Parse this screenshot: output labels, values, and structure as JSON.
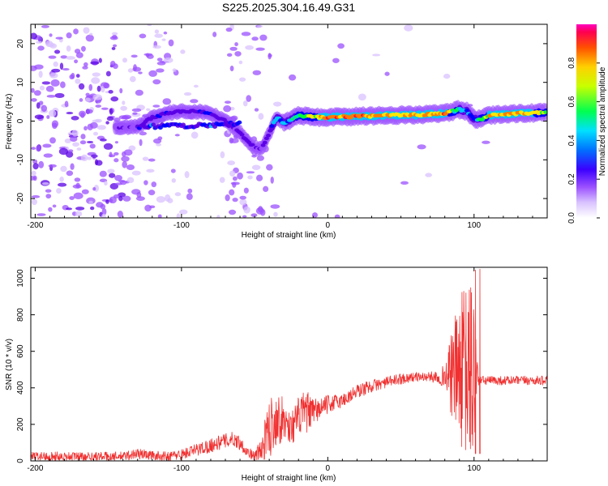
{
  "colors": {
    "spectrogram": [
      "#d9c2ff",
      "#9b50ff",
      "#5a00e6",
      "#0000ff",
      "#00c8ff",
      "#00ff3a",
      "#ffe800",
      "#ff7a00",
      "#ff1030"
    ],
    "snr_line": "#f03030",
    "axis": "#000000"
  },
  "chart_data": [
    {
      "type": "heatmap",
      "title": "S225.2025.304.16.49.G31",
      "xlabel": "Height of straight line (km)",
      "ylabel": "Frequency (Hz)",
      "xlim": [
        -203,
        150
      ],
      "ylim": [
        -25,
        25
      ],
      "xticks": [
        -200,
        -100,
        0,
        100
      ],
      "yticks": [
        -20,
        -10,
        0,
        10,
        20
      ],
      "colorbar": {
        "label": "Normalized spectral amplitude",
        "range": [
          0,
          1
        ],
        "ticks": [
          "0.0",
          "0.2",
          "0.4",
          "0.6",
          "0.8"
        ],
        "tick_values": [
          0,
          0.2,
          0.4,
          0.6,
          0.8
        ]
      },
      "ridge_x": [
        -140,
        -130,
        -120,
        -110,
        -100,
        -90,
        -80,
        -70,
        -60,
        -55,
        -50,
        -45,
        -40,
        -35,
        -30,
        -20,
        -10,
        0,
        20,
        40,
        60,
        80,
        85,
        90,
        95,
        100,
        105,
        110,
        130,
        150
      ],
      "ridge_y": [
        -1.5,
        -1.5,
        1,
        2,
        2.5,
        2.5,
        2,
        0,
        -3,
        -5,
        -7,
        -7,
        -3,
        1,
        -0.5,
        1.5,
        1,
        1,
        1.2,
        1.5,
        1.6,
        2,
        2.5,
        3,
        2.5,
        0.5,
        0.5,
        1.5,
        2,
        2.2
      ],
      "ridge_amp": [
        0.2,
        0.15,
        0.3,
        0.3,
        0.25,
        0.3,
        0.3,
        0.2,
        0.2,
        0.25,
        0.2,
        0.2,
        0.3,
        0.5,
        0.45,
        0.6,
        0.75,
        0.9,
        0.92,
        0.8,
        0.8,
        0.9,
        0.65,
        0.55,
        0.45,
        0.35,
        0.65,
        0.8,
        0.85,
        0.75
      ]
    },
    {
      "type": "line",
      "xlabel": "Height of straight line (km)",
      "ylabel": "SNR (10 * v/v)",
      "xlim": [
        -203,
        150
      ],
      "ylim": [
        0,
        1060
      ],
      "xticks": [
        -200,
        -100,
        0,
        100
      ],
      "yticks": [
        0,
        200,
        400,
        600,
        800,
        1000
      ],
      "series": [
        {
          "name": "SNR",
          "x": [
            -203,
            -190,
            -180,
            -170,
            -160,
            -150,
            -140,
            -130,
            -120,
            -110,
            -100,
            -90,
            -80,
            -70,
            -65,
            -60,
            -55,
            -50,
            -45,
            -40,
            -35,
            -30,
            -25,
            -20,
            -15,
            -10,
            -5,
            0,
            10,
            20,
            30,
            40,
            50,
            60,
            70,
            80,
            85,
            90,
            95,
            100,
            103,
            105,
            110,
            120,
            130,
            140,
            150
          ],
          "y": [
            25,
            25,
            25,
            25,
            25,
            25,
            25,
            40,
            30,
            25,
            35,
            60,
            85,
            110,
            120,
            100,
            50,
            25,
            60,
            180,
            240,
            220,
            180,
            240,
            270,
            260,
            290,
            310,
            330,
            380,
            410,
            430,
            450,
            460,
            460,
            465,
            470,
            500,
            480,
            470,
            440,
            440,
            440,
            440,
            440,
            440,
            440
          ],
          "noise_amplitude": [
            25,
            25,
            25,
            25,
            25,
            25,
            25,
            30,
            25,
            25,
            30,
            35,
            40,
            40,
            40,
            40,
            30,
            25,
            80,
            170,
            150,
            120,
            90,
            110,
            120,
            80,
            60,
            50,
            40,
            40,
            35,
            30,
            30,
            25,
            25,
            60,
            250,
            400,
            500,
            550,
            30,
            25,
            25,
            25,
            25,
            25,
            25
          ]
        }
      ],
      "annotations": [
        {
          "x": 101,
          "y": 1045
        },
        {
          "x": 104,
          "y": 1050
        }
      ]
    }
  ]
}
